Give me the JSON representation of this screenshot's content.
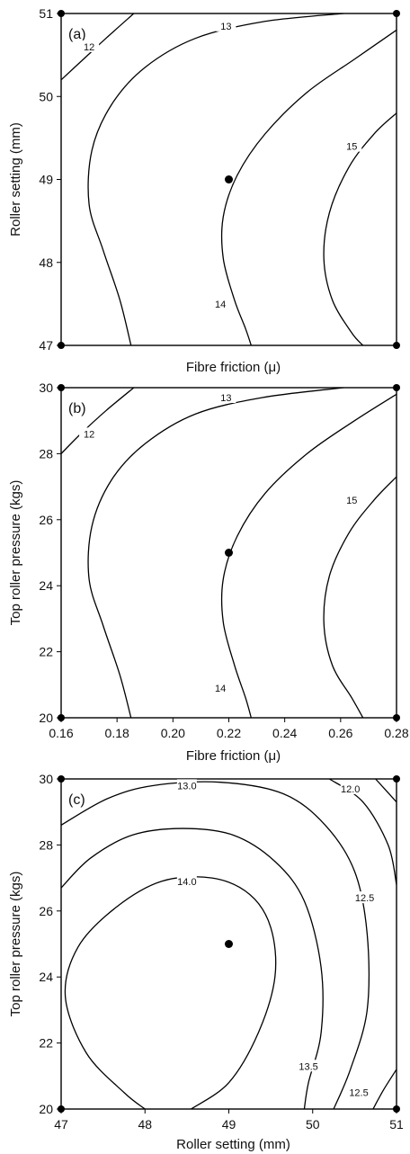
{
  "chart_data": [
    {
      "type": "contour",
      "panel_label": "(a)",
      "xlabel": "Fibre friction (μ)",
      "ylabel": "Roller setting (mm)",
      "xlim": [
        0.16,
        0.28
      ],
      "ylim": [
        47,
        51
      ],
      "xticks": [],
      "yticks": [
        "47",
        "48",
        "49",
        "50",
        "51"
      ],
      "center_point": {
        "x": 0.22,
        "y": 49
      },
      "contours": [
        {
          "level": "12",
          "points": [
            [
              0.16,
              50.2
            ],
            [
              0.168,
              50.45
            ],
            [
              0.176,
              50.7
            ],
            [
              0.186,
              51
            ]
          ]
        },
        {
          "level": "13",
          "points": [
            [
              0.261,
              51
            ],
            [
              0.232,
              50.9
            ],
            [
              0.208,
              50.7
            ],
            [
              0.19,
              50.35
            ],
            [
              0.178,
              49.9
            ],
            [
              0.171,
              49.35
            ],
            [
              0.17,
              48.7
            ],
            [
              0.175,
              48.15
            ],
            [
              0.181,
              47.55
            ],
            [
              0.185,
              47
            ]
          ]
        },
        {
          "level": "14",
          "points": [
            [
              0.28,
              50.8
            ],
            [
              0.265,
              50.45
            ],
            [
              0.248,
              50.05
            ],
            [
              0.233,
              49.55
            ],
            [
              0.223,
              49.05
            ],
            [
              0.218,
              48.55
            ],
            [
              0.218,
              48.05
            ],
            [
              0.222,
              47.55
            ],
            [
              0.226,
              47.2
            ],
            [
              0.228,
              47
            ]
          ]
        },
        {
          "level": "15",
          "points": [
            [
              0.28,
              49.8
            ],
            [
              0.272,
              49.55
            ],
            [
              0.263,
              49.15
            ],
            [
              0.256,
              48.6
            ],
            [
              0.254,
              48.05
            ],
            [
              0.257,
              47.55
            ],
            [
              0.264,
              47.15
            ],
            [
              0.268,
              47
            ]
          ]
        }
      ],
      "contour_labels": [
        {
          "text": "12",
          "x": 0.17,
          "y": 50.6
        },
        {
          "text": "13",
          "x": 0.219,
          "y": 50.85
        },
        {
          "text": "14",
          "x": 0.217,
          "y": 47.5
        },
        {
          "text": "15",
          "x": 0.264,
          "y": 49.4
        }
      ]
    },
    {
      "type": "contour",
      "panel_label": "(b)",
      "xlabel": "Fibre friction (μ)",
      "ylabel": "Top roller pressure (kgs)",
      "xlim": [
        0.16,
        0.28
      ],
      "ylim": [
        20,
        30
      ],
      "xticks": [
        "0.16",
        "0.18",
        "0.20",
        "0.22",
        "0.24",
        "0.26",
        "0.28"
      ],
      "yticks": [
        "20",
        "22",
        "24",
        "26",
        "28",
        "30"
      ],
      "center_point": {
        "x": 0.22,
        "y": 25
      },
      "contours": [
        {
          "level": "12",
          "points": [
            [
              0.16,
              28.0
            ],
            [
              0.167,
              28.6
            ],
            [
              0.176,
              29.3
            ],
            [
              0.186,
              30
            ]
          ]
        },
        {
          "level": "13",
          "points": [
            [
              0.261,
              30
            ],
            [
              0.232,
              29.7
            ],
            [
              0.208,
              29.2
            ],
            [
              0.19,
              28.3
            ],
            [
              0.178,
              27.2
            ],
            [
              0.171,
              25.8
            ],
            [
              0.17,
              24.2
            ],
            [
              0.175,
              22.8
            ],
            [
              0.181,
              21.3
            ],
            [
              0.185,
              20
            ]
          ]
        },
        {
          "level": "14",
          "points": [
            [
              0.28,
              29.8
            ],
            [
              0.265,
              29.0
            ],
            [
              0.248,
              28.0
            ],
            [
              0.233,
              26.8
            ],
            [
              0.223,
              25.5
            ],
            [
              0.218,
              24.2
            ],
            [
              0.218,
              22.9
            ],
            [
              0.222,
              21.6
            ],
            [
              0.226,
              20.6
            ],
            [
              0.228,
              20
            ]
          ]
        },
        {
          "level": "15",
          "points": [
            [
              0.28,
              27.3
            ],
            [
              0.272,
              26.6
            ],
            [
              0.263,
              25.6
            ],
            [
              0.256,
              24.3
            ],
            [
              0.254,
              22.9
            ],
            [
              0.257,
              21.6
            ],
            [
              0.264,
              20.6
            ],
            [
              0.268,
              20
            ]
          ]
        }
      ],
      "contour_labels": [
        {
          "text": "12",
          "x": 0.17,
          "y": 28.6
        },
        {
          "text": "13",
          "x": 0.219,
          "y": 29.7
        },
        {
          "text": "14",
          "x": 0.217,
          "y": 20.9
        },
        {
          "text": "15",
          "x": 0.264,
          "y": 26.6
        }
      ]
    },
    {
      "type": "contour",
      "panel_label": "(c)",
      "xlabel": "Roller setting (mm)",
      "ylabel": "Top roller pressure (kgs)",
      "xlim": [
        47,
        51
      ],
      "ylim": [
        20,
        30
      ],
      "xticks": [
        "47",
        "48",
        "49",
        "50",
        "51"
      ],
      "yticks": [
        "20",
        "22",
        "24",
        "26",
        "28",
        "30"
      ],
      "center_point": {
        "x": 49,
        "y": 25
      },
      "contours": [
        {
          "level": "14.0",
          "points": [
            [
              48.55,
              20
            ],
            [
              49.0,
              20.8
            ],
            [
              49.35,
              22.3
            ],
            [
              49.55,
              24.0
            ],
            [
              49.5,
              25.5
            ],
            [
              49.25,
              26.5
            ],
            [
              48.8,
              27.0
            ],
            [
              48.2,
              26.9
            ],
            [
              47.65,
              26.1
            ],
            [
              47.2,
              24.9
            ],
            [
              47.05,
              23.4
            ],
            [
              47.3,
              21.7
            ],
            [
              47.75,
              20.5
            ],
            [
              48.0,
              20
            ]
          ]
        },
        {
          "level": "13.5",
          "points": [
            [
              47.0,
              26.7
            ],
            [
              47.35,
              27.6
            ],
            [
              47.85,
              28.3
            ],
            [
              48.45,
              28.5
            ],
            [
              49.05,
              28.3
            ],
            [
              49.55,
              27.5
            ],
            [
              49.9,
              26.3
            ],
            [
              50.1,
              24.3
            ],
            [
              50.1,
              22.3
            ],
            [
              49.95,
              20.8
            ],
            [
              49.9,
              20
            ]
          ]
        },
        {
          "level": "13.0",
          "points": [
            [
              47.0,
              28.6
            ],
            [
              47.55,
              29.4
            ],
            [
              48.1,
              29.8
            ],
            [
              48.9,
              29.9
            ],
            [
              49.65,
              29.55
            ],
            [
              50.15,
              28.6
            ],
            [
              50.5,
              27.2
            ],
            [
              50.65,
              25.3
            ],
            [
              50.65,
              23.0
            ],
            [
              50.45,
              21.2
            ],
            [
              50.25,
              20
            ]
          ]
        },
        {
          "level": "12.5",
          "points": [
            [
              50.2,
              30
            ],
            [
              50.6,
              29.3
            ],
            [
              50.9,
              28.0
            ],
            [
              51.0,
              26.8
            ]
          ]
        },
        {
          "level": "12.0",
          "points": [
            [
              50.75,
              30
            ],
            [
              51.0,
              29.3
            ]
          ]
        },
        {
          "level": "12.5",
          "points": [
            [
              51.0,
              21.2
            ],
            [
              50.85,
              20.6
            ],
            [
              50.72,
              20
            ]
          ]
        }
      ],
      "contour_labels": [
        {
          "text": "13.0",
          "x": 48.5,
          "y": 29.8
        },
        {
          "text": "14.0",
          "x": 48.5,
          "y": 26.9
        },
        {
          "text": "12.0",
          "x": 50.45,
          "y": 29.7
        },
        {
          "text": "12.5",
          "x": 50.62,
          "y": 26.4
        },
        {
          "text": "13.5",
          "x": 49.95,
          "y": 21.3
        },
        {
          "text": "12.5",
          "x": 50.55,
          "y": 20.5
        }
      ]
    }
  ]
}
